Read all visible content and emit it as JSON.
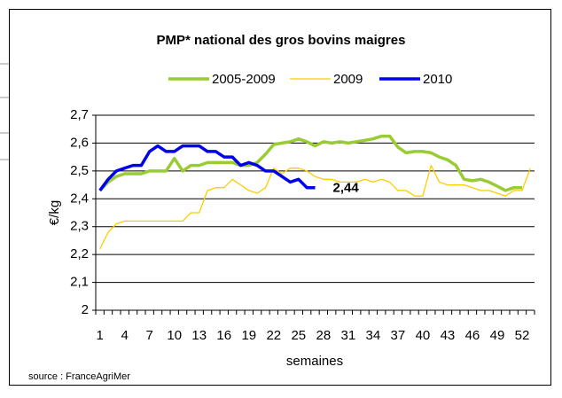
{
  "chart_data": {
    "type": "line",
    "title": "PMP* national des gros bovins maigres",
    "y_label": "€/kg",
    "x_label": "semaines",
    "source": "source : FranceAgriMer",
    "categories": [
      "1",
      null,
      null,
      "4",
      null,
      null,
      "7",
      null,
      null,
      "10",
      null,
      null,
      "13",
      null,
      null,
      "16",
      null,
      null,
      "19",
      null,
      null,
      "22",
      null,
      null,
      "25",
      null,
      null,
      "28",
      null,
      null,
      "31",
      null,
      null,
      "34",
      null,
      null,
      "37",
      null,
      null,
      "40",
      null,
      null,
      "43",
      null,
      null,
      "46",
      null,
      null,
      "49",
      null,
      null,
      "52",
      null
    ],
    "ylim": [
      2,
      2.7
    ],
    "yticks": [
      2,
      {
        "value": 2.1,
        "label": "2,1"
      },
      {
        "value": 2.2,
        "label": "2,2"
      },
      {
        "value": 2.3,
        "label": "2,3"
      },
      {
        "value": 2.4,
        "label": "2,4"
      },
      {
        "value": 2.5,
        "label": "2,5"
      },
      {
        "value": 2.6,
        "label": "2,6"
      },
      {
        "value": 2.7,
        "label": "2,7"
      }
    ],
    "grid": true,
    "legend": "top",
    "series": [
      {
        "name": "2005-2009",
        "color": "#99cc33",
        "width": 3.5,
        "values": [
          2.43,
          2.46,
          2.48,
          2.49,
          2.49,
          2.49,
          2.5,
          2.5,
          2.5,
          2.545,
          2.5,
          2.52,
          2.52,
          2.53,
          2.53,
          2.53,
          2.53,
          2.52,
          2.52,
          2.53,
          2.56,
          2.595,
          2.6,
          2.605,
          2.615,
          2.605,
          2.59,
          2.605,
          2.6,
          2.605,
          2.6,
          2.605,
          2.61,
          2.615,
          2.625,
          2.625,
          2.585,
          2.565,
          2.57,
          2.57,
          2.565,
          2.55,
          2.54,
          2.52,
          2.47,
          2.465,
          2.47,
          2.46,
          2.445,
          2.43,
          2.44,
          2.44,
          null
        ]
      },
      {
        "name": "2009",
        "color": "#ffcc00",
        "width": 1.3,
        "values": [
          2.22,
          2.28,
          2.31,
          2.32,
          2.32,
          2.32,
          2.32,
          2.32,
          2.32,
          2.32,
          2.32,
          2.35,
          2.35,
          2.43,
          2.44,
          2.44,
          2.47,
          2.45,
          2.43,
          2.42,
          2.44,
          2.51,
          2.49,
          2.51,
          2.51,
          2.5,
          2.48,
          2.47,
          2.47,
          2.46,
          2.46,
          2.46,
          2.47,
          2.46,
          2.47,
          2.46,
          2.43,
          2.43,
          2.41,
          2.41,
          2.52,
          2.46,
          2.45,
          2.45,
          2.45,
          2.44,
          2.43,
          2.43,
          2.42,
          2.41,
          2.43,
          2.43,
          2.51
        ]
      },
      {
        "name": "2010",
        "color": "#0000ee",
        "width": 3.5,
        "values": [
          2.43,
          2.47,
          2.5,
          2.51,
          2.52,
          2.52,
          2.57,
          2.59,
          2.57,
          2.57,
          2.59,
          2.59,
          2.59,
          2.57,
          2.57,
          2.55,
          2.55,
          2.52,
          2.53,
          2.52,
          2.5,
          2.5,
          2.48,
          2.46,
          2.47,
          2.44,
          2.44,
          null,
          null,
          null,
          null,
          null,
          null,
          null,
          null,
          null,
          null,
          null,
          null,
          null,
          null,
          null,
          null,
          null,
          null,
          null,
          null,
          null,
          null,
          null,
          null,
          null,
          null
        ]
      }
    ],
    "annotations": [
      {
        "text": "2,44",
        "series": 2
      }
    ]
  }
}
